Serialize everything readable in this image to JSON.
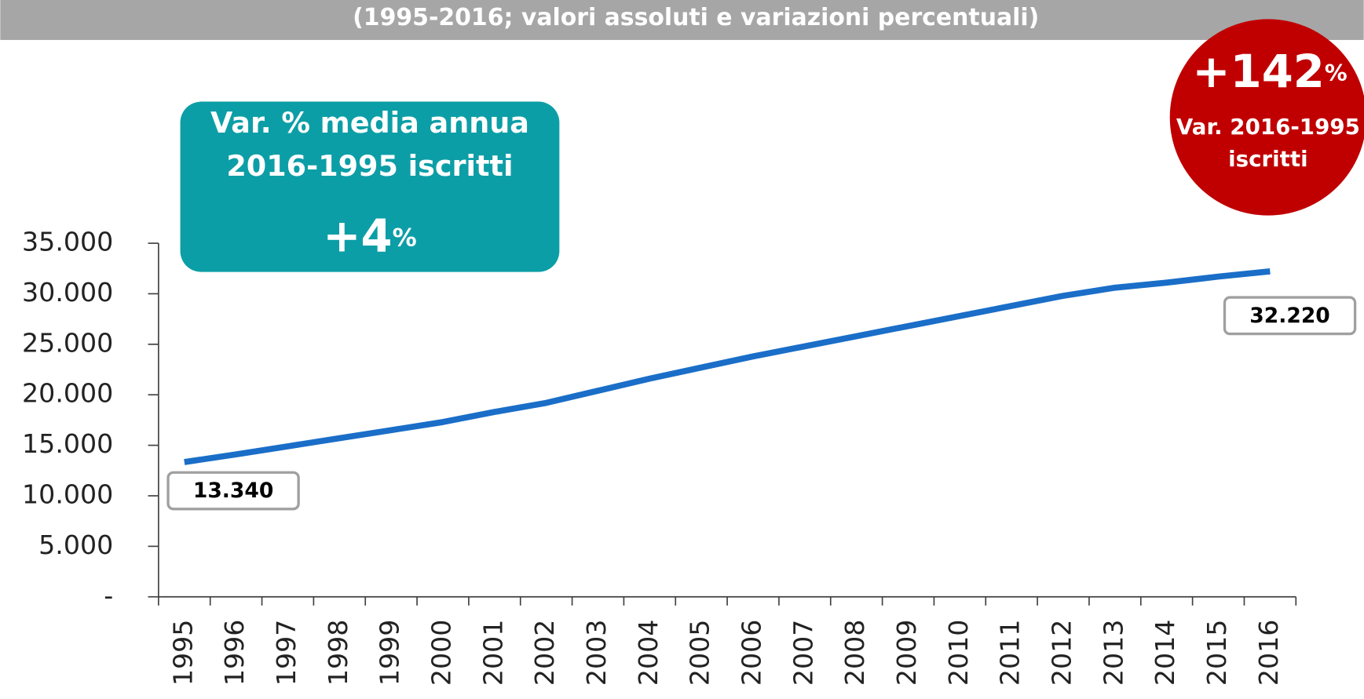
{
  "chart_data": {
    "type": "line",
    "subtitle": "(1995-2016; valori assoluti e variazioni percentuali)",
    "categories": [
      "1995",
      "1996",
      "1997",
      "1998",
      "1999",
      "2000",
      "2001",
      "2002",
      "2003",
      "2004",
      "2005",
      "2006",
      "2007",
      "2008",
      "2009",
      "2010",
      "2011",
      "2012",
      "2013",
      "2014",
      "2015",
      "2016"
    ],
    "series": [
      {
        "name": "iscritti",
        "color": "#1a6ec8",
        "values": [
          13340,
          14100,
          14900,
          15700,
          16500,
          17300,
          18300,
          19200,
          20400,
          21600,
          22700,
          23800,
          24800,
          25800,
          26800,
          27800,
          28800,
          29800,
          30600,
          31100,
          31700,
          32220
        ],
        "value_labels": [
          "13.340",
          null,
          null,
          null,
          null,
          null,
          null,
          null,
          null,
          null,
          null,
          null,
          null,
          null,
          null,
          null,
          null,
          null,
          null,
          null,
          null,
          "32.220"
        ]
      }
    ],
    "ylim": [
      0,
      35000
    ],
    "yticks": [
      {
        "value": 0,
        "label": "-"
      },
      {
        "value": 5000,
        "label": "5.000"
      },
      {
        "value": 10000,
        "label": "10.000"
      },
      {
        "value": 15000,
        "label": "15.000"
      },
      {
        "value": 20000,
        "label": "20.000"
      },
      {
        "value": 25000,
        "label": "25.000"
      },
      {
        "value": 30000,
        "label": "30.000"
      },
      {
        "value": 35000,
        "label": "35.000"
      }
    ],
    "annotations": [
      {
        "lines": [
          "Var. % media annua",
          "2016-1995 iscritti"
        ],
        "figure": "+4",
        "unit": "%",
        "color": "#0c9ea6"
      },
      {
        "lines": [
          "Var. 2016-1995",
          "iscritti"
        ],
        "figure": "+142",
        "unit": "%",
        "color": "#c00000"
      }
    ]
  }
}
